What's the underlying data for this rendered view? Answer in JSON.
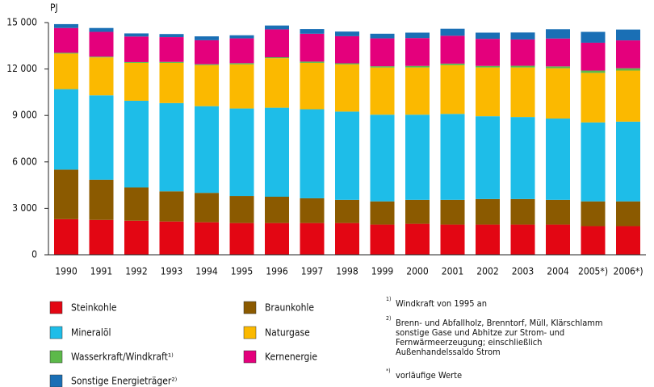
{
  "chart_data": {
    "type": "stacked_bar",
    "y_unit": "PJ",
    "categories": [
      "1990",
      "1991",
      "1992",
      "1993",
      "1994",
      "1995",
      "1996",
      "1997",
      "1998",
      "1999",
      "2000",
      "2001",
      "2002",
      "2003",
      "2004",
      "2005*)",
      "2006*)"
    ],
    "series": [
      {
        "name": "Steinkohle",
        "color": "#e30613",
        "values": [
          2300,
          2250,
          2200,
          2150,
          2100,
          2050,
          2050,
          2050,
          2050,
          1950,
          2000,
          1950,
          1950,
          1950,
          1950,
          1850,
          1850
        ]
      },
      {
        "name": "Braunkohle",
        "color": "#8b5a00",
        "values": [
          3200,
          2600,
          2150,
          1950,
          1900,
          1750,
          1700,
          1600,
          1500,
          1500,
          1550,
          1600,
          1650,
          1650,
          1600,
          1600,
          1600
        ]
      },
      {
        "name": "Mineralöl",
        "color": "#1ebde8",
        "values": [
          5200,
          5450,
          5600,
          5700,
          5600,
          5650,
          5750,
          5750,
          5700,
          5600,
          5500,
          5550,
          5350,
          5300,
          5250,
          5100,
          5150
        ]
      },
      {
        "name": "Naturgase",
        "color": "#fbb900",
        "values": [
          2300,
          2450,
          2450,
          2600,
          2650,
          2850,
          3200,
          3000,
          3050,
          3050,
          3050,
          3150,
          3150,
          3200,
          3250,
          3200,
          3300
        ]
      },
      {
        "name": "Wasserkraft/Windkraft¹⁾",
        "color": "#5cb94a",
        "values": [
          50,
          50,
          50,
          60,
          60,
          80,
          60,
          80,
          70,
          80,
          100,
          100,
          100,
          110,
          120,
          150,
          150
        ]
      },
      {
        "name": "Kernenergie",
        "color": "#e4007c",
        "values": [
          1600,
          1600,
          1650,
          1600,
          1550,
          1600,
          1800,
          1800,
          1750,
          1800,
          1800,
          1800,
          1750,
          1700,
          1800,
          1800,
          1800
        ]
      },
      {
        "name": "Sonstige Energieträger²⁾",
        "color": "#1a6fb5",
        "values": [
          250,
          250,
          200,
          200,
          250,
          200,
          250,
          300,
          300,
          300,
          350,
          450,
          400,
          450,
          600,
          700,
          700
        ]
      }
    ],
    "ylim": [
      0,
      15000
    ],
    "yticks": [
      0,
      {
        "value": 3000,
        "label": "3 000"
      },
      {
        "value": 6000,
        "label": "6 000"
      },
      {
        "value": 9000,
        "label": "9 000"
      },
      {
        "value": 12000,
        "label": "12 000"
      },
      {
        "value": 15000,
        "label": "15 000"
      }
    ],
    "footnotes": [
      {
        "mark": "1)",
        "lines": [
          "Windkraft von 1995 an"
        ]
      },
      {
        "mark": "2)",
        "lines": [
          "Brenn- und Abfallholz, Brenntorf, Müll, Klärschlamm",
          "sonstige Gase und Abhitze zur Strom- und",
          "Fernwärmeerzeugung; einschließlich",
          "Außenhandelssaldo Strom"
        ]
      },
      {
        "mark": "*)",
        "lines": [
          "vorläufige Werte"
        ]
      }
    ]
  }
}
